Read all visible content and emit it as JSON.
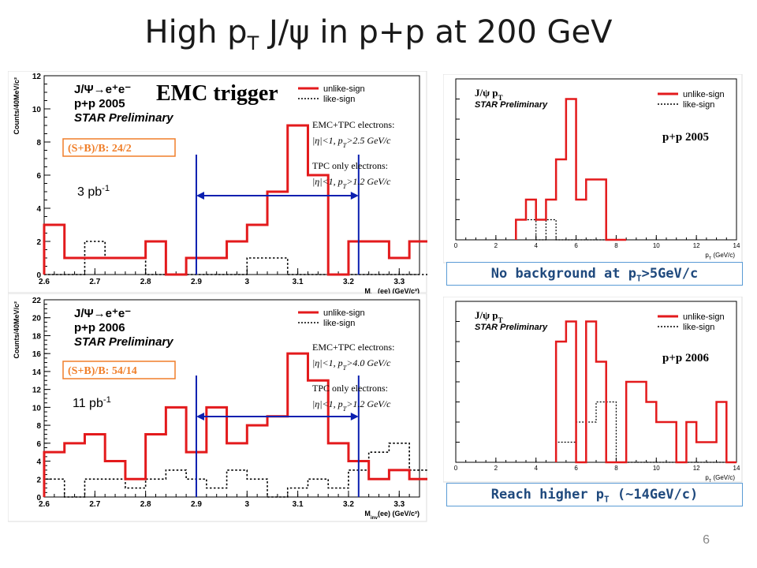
{
  "slide": {
    "title_parts": {
      "a": "High p",
      "sub": "T",
      "b": " J/ψ in p+p at 200 GeV"
    },
    "page_number": "6"
  },
  "captions": {
    "top": {
      "a": "No background at p",
      "sub": "T",
      "b": ">5GeV/c"
    },
    "bottom": {
      "a": "Reach higher p",
      "sub": "T",
      "b": " (~14GeV/c)"
    }
  },
  "colors": {
    "unlike": "#e31a1c",
    "like": "#000000",
    "window": "#0b1fb0",
    "box": "#f07f2a",
    "caption_border": "#5a9bd5",
    "caption_text": "#1f497d"
  },
  "chart_data": [
    {
      "id": "minv-2005",
      "type": "histogram",
      "ylabel": "Counts/40MeV/c²",
      "xlabel": "M_inv(ee) (GeV/c²)",
      "xlim": [
        2.6,
        3.34
      ],
      "ylim": [
        0,
        12
      ],
      "xticks": [
        "2.6",
        "2.7",
        "2.8",
        "2.9",
        "3",
        "3.1",
        "3.2",
        "3.3"
      ],
      "yticks": [
        "0",
        "2",
        "4",
        "6",
        "8",
        "10",
        "12"
      ],
      "header": [
        "J/Ψ→e⁺e⁻",
        "p+p 2005",
        "STAR Preliminary"
      ],
      "overlay_title": "EMC trigger",
      "box_label": "(S+B)/B: 24/2",
      "lumi": {
        "base": "3 pb",
        "sup": "-1"
      },
      "cuts": [
        {
          "title": "EMC+TPC electrons:",
          "cond": "|η|<1, p",
          "sub": "T",
          "val": ">2.5 GeV/c"
        },
        {
          "title": "TPC only electrons:",
          "cond": "|η|<1, p",
          "sub": "T",
          "val": ">1.2 GeV/c"
        }
      ],
      "window": [
        2.9,
        3.22
      ],
      "legend": [
        "unlike-sign",
        "like-sign"
      ],
      "legend_placement": "top-right",
      "series": [
        {
          "name": "unlike-sign",
          "x": [
            2.6,
            2.64,
            2.68,
            2.72,
            2.76,
            2.8,
            2.84,
            2.88,
            2.92,
            2.96,
            3.0,
            3.04,
            3.08,
            3.12,
            3.16,
            3.2,
            3.24,
            3.28,
            3.32
          ],
          "values": [
            3,
            1,
            1,
            1,
            1,
            2,
            0,
            1,
            1,
            2,
            3,
            5,
            9,
            6,
            0,
            2,
            2,
            1,
            2
          ]
        },
        {
          "name": "like-sign",
          "x": [
            2.6,
            2.64,
            2.68,
            2.72,
            2.76,
            2.8,
            2.84,
            2.88,
            2.92,
            2.96,
            3.0,
            3.04,
            3.08,
            3.12,
            3.16,
            3.2,
            3.24,
            3.28,
            3.32
          ],
          "values": [
            0,
            0,
            2,
            1,
            1,
            0,
            0,
            0,
            0,
            0,
            1,
            1,
            0,
            0,
            0,
            0,
            0,
            0,
            0
          ]
        }
      ]
    },
    {
      "id": "minv-2006",
      "type": "histogram",
      "ylabel": "Counts/40MeV/c²",
      "xlabel": "M_inv(ee) (GeV/c²)",
      "xlim": [
        2.6,
        3.34
      ],
      "ylim": [
        0,
        22
      ],
      "xticks": [
        "2.6",
        "2.7",
        "2.8",
        "2.9",
        "3",
        "3.1",
        "3.2",
        "3.3"
      ],
      "yticks": [
        "0",
        "2",
        "4",
        "6",
        "8",
        "10",
        "12",
        "14",
        "16",
        "18",
        "20",
        "22"
      ],
      "header": [
        "J/Ψ→e⁺e⁻",
        "p+p 2006",
        "STAR Preliminary"
      ],
      "box_label": "(S+B)/B: 54/14",
      "lumi": {
        "base": "11 pb",
        "sup": "-1"
      },
      "cuts": [
        {
          "title": "EMC+TPC electrons:",
          "cond": "|η|<1, p",
          "sub": "T",
          "val": ">4.0 GeV/c"
        },
        {
          "title": "TPC only electrons:",
          "cond": "|η|<1, p",
          "sub": "T",
          "val": ">1.2 GeV/c"
        }
      ],
      "window": [
        2.9,
        3.22
      ],
      "legend": [
        "unlike-sign",
        "like-sign"
      ],
      "legend_placement": "top-right",
      "series": [
        {
          "name": "unlike-sign",
          "x": [
            2.6,
            2.64,
            2.68,
            2.72,
            2.76,
            2.8,
            2.84,
            2.88,
            2.92,
            2.96,
            3.0,
            3.04,
            3.08,
            3.12,
            3.16,
            3.2,
            3.24,
            3.28,
            3.32
          ],
          "values": [
            5,
            6,
            7,
            4,
            2,
            7,
            10,
            5,
            10,
            6,
            8,
            9,
            16,
            13,
            6,
            4,
            2,
            3,
            2
          ]
        },
        {
          "name": "like-sign",
          "x": [
            2.6,
            2.64,
            2.68,
            2.72,
            2.76,
            2.8,
            2.84,
            2.88,
            2.92,
            2.96,
            3.0,
            3.04,
            3.08,
            3.12,
            3.16,
            3.2,
            3.24,
            3.28,
            3.32
          ],
          "values": [
            2,
            0,
            2,
            2,
            1,
            2,
            3,
            2,
            1,
            3,
            2,
            0,
            1,
            2,
            1,
            3,
            5,
            6,
            3
          ]
        }
      ]
    },
    {
      "id": "pt-2005",
      "type": "histogram",
      "xlabel": "p_T^{J/ψ} (GeV/c)",
      "xlim": [
        0,
        14
      ],
      "ylim": [
        0,
        8
      ],
      "xticks": [
        "0",
        "2",
        "4",
        "6",
        "8",
        "10",
        "12",
        "14"
      ],
      "header": [
        "J/ψ p_T",
        "STAR Preliminary"
      ],
      "tag": "p+p 2005",
      "legend": [
        "unlike-sign",
        "like-sign"
      ],
      "legend_placement": "top-right",
      "series": [
        {
          "name": "unlike-sign",
          "x": [
            3,
            3.5,
            4,
            4.5,
            5,
            5.5,
            6,
            6.5,
            7,
            7.5,
            8
          ],
          "values": [
            1,
            2,
            1,
            2,
            4,
            7,
            2,
            3,
            3,
            0,
            0
          ]
        },
        {
          "name": "like-sign",
          "x": [
            3,
            3.5,
            4,
            4.5,
            5,
            5.5,
            6,
            6.5,
            7,
            7.5,
            8
          ],
          "values": [
            1,
            1,
            0,
            1,
            0,
            0,
            0,
            0,
            0,
            0,
            0
          ]
        }
      ]
    },
    {
      "id": "pt-2006",
      "type": "histogram",
      "xlabel": "p_T^{J/ψ} (GeV/c)",
      "xlim": [
        0,
        14
      ],
      "ylim": [
        0,
        8
      ],
      "xticks": [
        "0",
        "2",
        "4",
        "6",
        "8",
        "10",
        "12",
        "14"
      ],
      "header": [
        "J/ψ p_T",
        "STAR Preliminary"
      ],
      "tag": "p+p 2006",
      "legend": [
        "unlike-sign",
        "like-sign"
      ],
      "legend_placement": "top-right",
      "series": [
        {
          "name": "unlike-sign",
          "x": [
            5,
            5.5,
            6,
            6.5,
            7,
            7.5,
            8,
            8.5,
            9,
            9.5,
            10,
            10.5,
            11,
            11.5,
            12,
            12.5,
            13,
            13.5
          ],
          "values": [
            6,
            7,
            0,
            7,
            5,
            0,
            0,
            4,
            4,
            3,
            2,
            2,
            0,
            2,
            1,
            1,
            3,
            0
          ]
        },
        {
          "name": "like-sign",
          "x": [
            5,
            5.5,
            6,
            6.5,
            7,
            7.5,
            8,
            8.5,
            9,
            9.5,
            10,
            10.5,
            11,
            11.5,
            12,
            12.5,
            13,
            13.5
          ],
          "values": [
            1,
            1,
            2,
            2,
            3,
            3,
            0,
            0,
            0,
            0,
            0,
            0,
            0,
            0,
            0,
            0,
            0,
            0
          ]
        }
      ]
    }
  ]
}
